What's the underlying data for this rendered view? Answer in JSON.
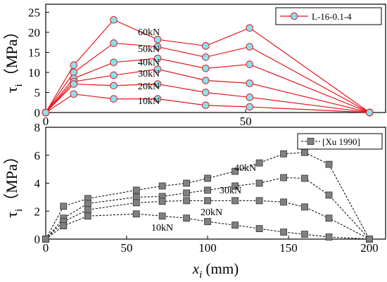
{
  "chart_data": [
    {
      "type": "line",
      "title": "",
      "xlabel": "",
      "ylabel_symbol": "τ",
      "ylabel_subscript": "i",
      "ylabel_unit": "（MPa）",
      "xlim": [
        0,
        85
      ],
      "ylim": [
        0,
        27
      ],
      "xticks": [
        "0",
        "50"
      ],
      "xtick_values": [
        0,
        50
      ],
      "yticks": [
        "0",
        "5",
        "10",
        "15",
        "20",
        "25"
      ],
      "ytick_values": [
        0,
        5,
        10,
        15,
        20,
        25
      ],
      "grid": false,
      "legend": {
        "position": "top-right",
        "label": "L-16-0.1-4"
      },
      "color": "#e8141e",
      "marker_color": "#7fe6ee",
      "x": [
        0,
        7,
        17,
        28,
        40,
        51,
        81
      ],
      "series": [
        {
          "label": "60kN",
          "values": [
            0,
            11.8,
            23.1,
            18.2,
            16.6,
            21.1,
            0
          ]
        },
        {
          "label": "50kN",
          "values": [
            0,
            10.0,
            17.3,
            16.4,
            13.8,
            16.4,
            0
          ]
        },
        {
          "label": "40kN",
          "values": [
            0,
            8.5,
            12.5,
            13.5,
            11.0,
            12.0,
            0
          ]
        },
        {
          "label": "30kN",
          "values": [
            0,
            7.7,
            9.3,
            10.8,
            8.0,
            7.3,
            0
          ]
        },
        {
          "label": "20kN",
          "values": [
            0,
            7.1,
            6.7,
            7.1,
            5.0,
            3.8,
            0
          ]
        },
        {
          "label": "10kN",
          "values": [
            0,
            4.6,
            3.4,
            3.4,
            1.8,
            1.4,
            0
          ]
        }
      ]
    },
    {
      "type": "line",
      "title": "",
      "xlabel_symbol": "x",
      "xlabel_subscript": "i",
      "xlabel_unit": " (mm)",
      "ylabel_symbol": "τ",
      "ylabel_subscript": "i",
      "ylabel_unit": "（MPa）",
      "xlim": [
        0,
        210
      ],
      "ylim": [
        0,
        8
      ],
      "xticks": [
        "0",
        "50",
        "100",
        "150",
        "200"
      ],
      "xtick_values": [
        0,
        50,
        100,
        150,
        200
      ],
      "yticks": [
        "0",
        "2",
        "4",
        "6",
        "8"
      ],
      "ytick_values": [
        0,
        2,
        4,
        6,
        8
      ],
      "grid": false,
      "legend": {
        "position": "top-right",
        "label": "[Xu 1990]"
      },
      "color": "#000000",
      "marker_color": "#808080",
      "series": [
        {
          "label": "40kN",
          "x": [
            0,
            11,
            26,
            56,
            72,
            87,
            100,
            117,
            132,
            147,
            160,
            175,
            200
          ],
          "values": [
            0,
            2.35,
            2.9,
            3.5,
            3.8,
            4.0,
            4.35,
            4.85,
            5.45,
            6.1,
            6.2,
            5.35,
            0
          ]
        },
        {
          "label": "30kN",
          "x": [
            0,
            11,
            26,
            56,
            72,
            87,
            100,
            117,
            132,
            147,
            160,
            175,
            200
          ],
          "values": [
            0,
            1.5,
            2.55,
            3.0,
            3.05,
            3.3,
            3.5,
            3.8,
            4.0,
            4.4,
            4.35,
            3.15,
            0
          ]
        },
        {
          "label": "20kN",
          "x": [
            0,
            11,
            26,
            56,
            72,
            87,
            100,
            117,
            132,
            147,
            160,
            175,
            200
          ],
          "values": [
            0,
            1.25,
            2.1,
            2.6,
            2.7,
            2.75,
            2.75,
            2.75,
            2.75,
            2.65,
            2.3,
            1.5,
            0
          ]
        },
        {
          "label": "10kN",
          "x": [
            0,
            11,
            26,
            56,
            72,
            87,
            100,
            117,
            132,
            147,
            160,
            175,
            200
          ],
          "values": [
            0,
            0.95,
            1.65,
            1.8,
            1.65,
            1.5,
            1.25,
            1.0,
            0.75,
            0.5,
            0.35,
            0.15,
            0
          ]
        }
      ]
    }
  ]
}
